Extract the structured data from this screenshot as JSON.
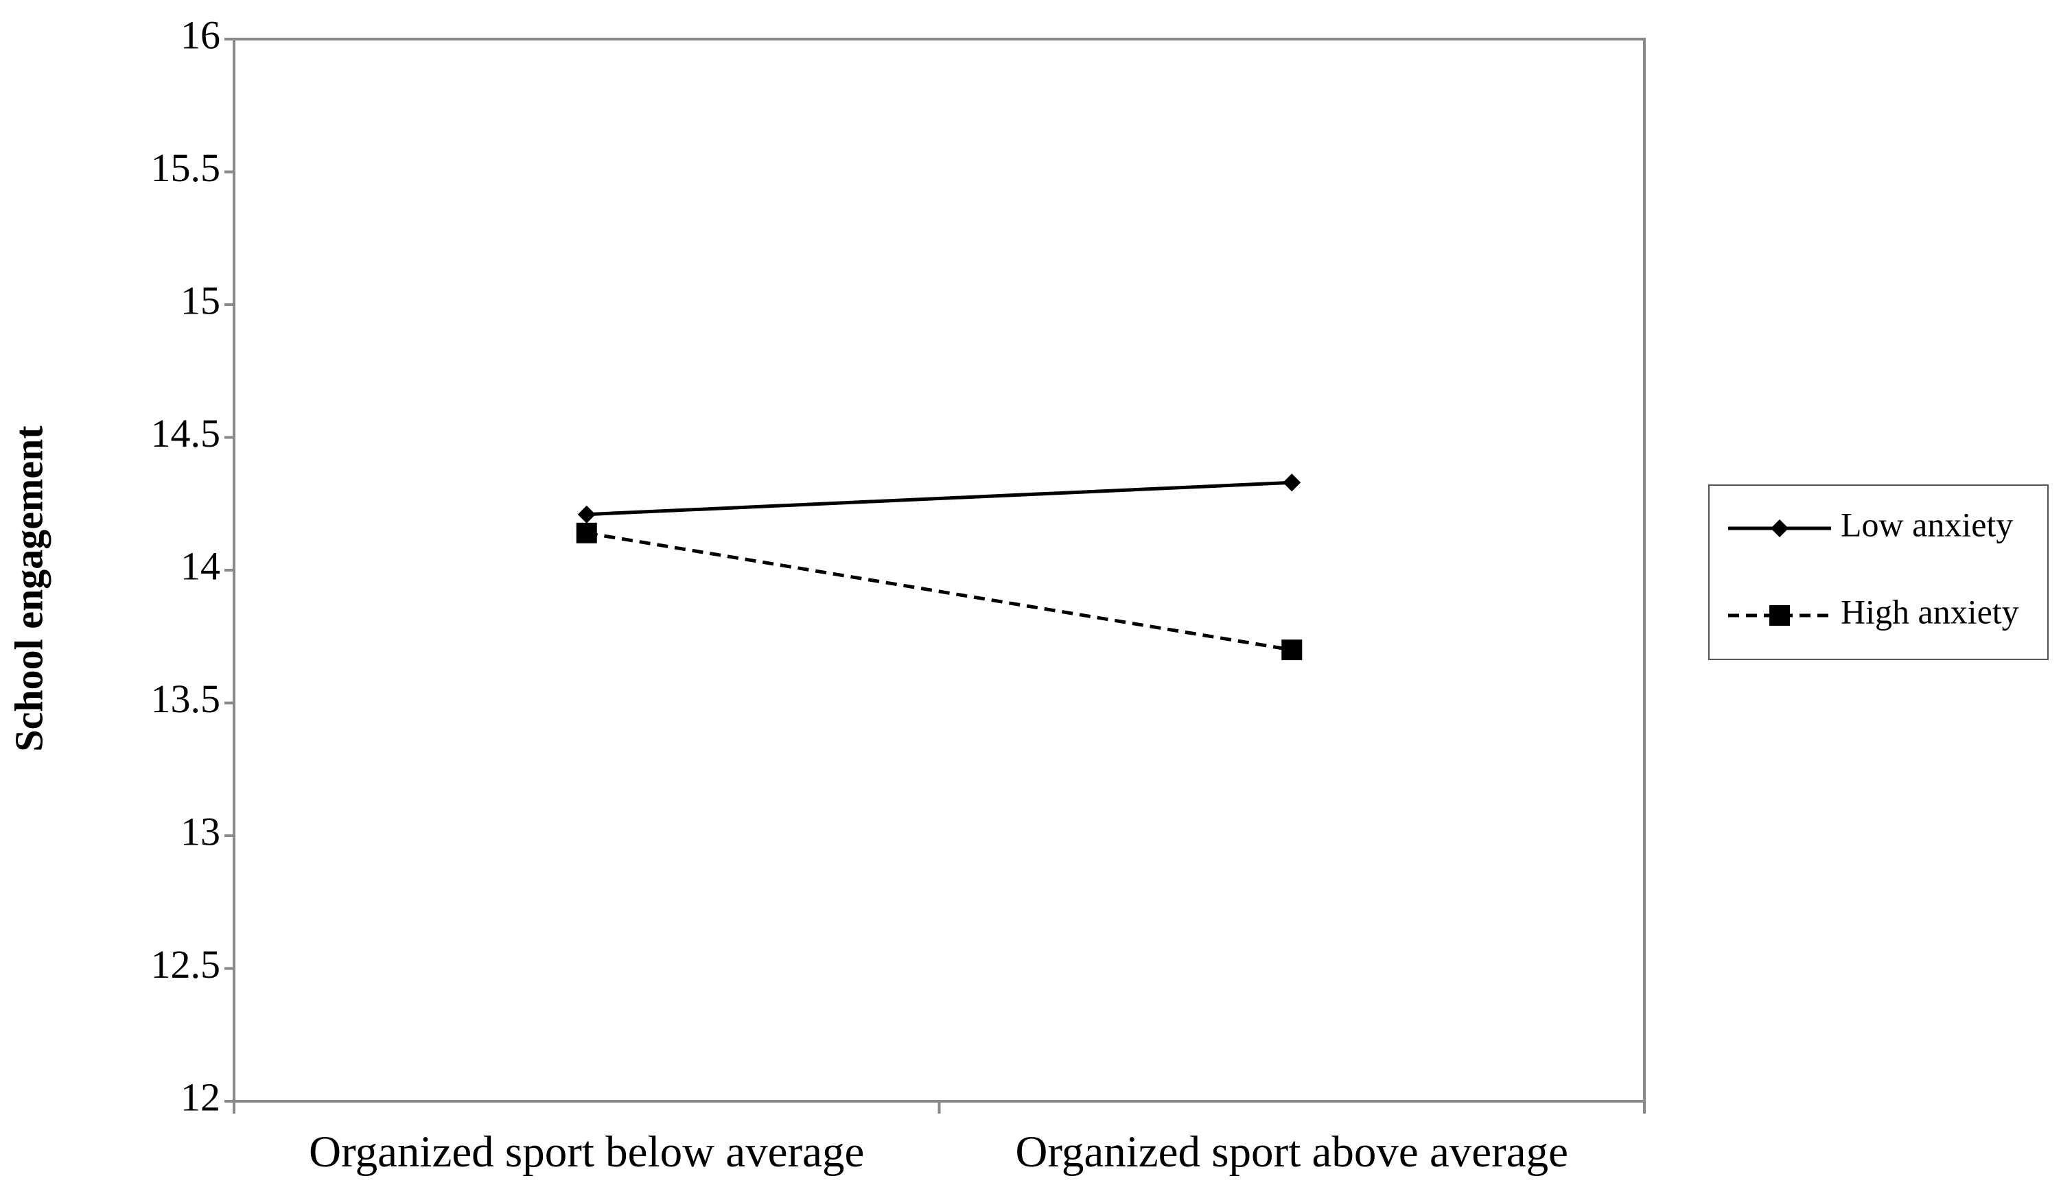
{
  "chart_data": {
    "type": "line",
    "y_label": "School engagement",
    "categories": [
      "Organized sport below average",
      "Organized sport above average"
    ],
    "series": [
      {
        "name": "Low anxiety",
        "color": "#000000",
        "marker": "diamond",
        "dashed": false,
        "values": [
          14.21,
          14.33
        ]
      },
      {
        "name": "High anxiety",
        "color": "#000000",
        "marker": "square",
        "dashed": true,
        "values": [
          14.14,
          13.7
        ]
      }
    ],
    "ylim": [
      12,
      16
    ],
    "yticks": [
      12,
      12.5,
      13,
      13.5,
      14,
      14.5,
      15,
      15.5,
      16
    ],
    "grid": false,
    "legend": "right"
  }
}
